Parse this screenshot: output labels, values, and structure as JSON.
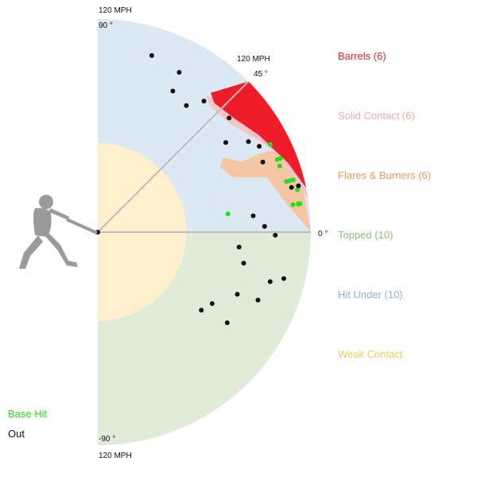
{
  "chart_data": {
    "type": "scatter",
    "axis_labels": {
      "max_speed_top": "120 MPH",
      "max_speed_mid": "120 MPH",
      "max_speed_bottom": "120 MPH",
      "angle_top": "90 °",
      "angle_45": "45 °",
      "angle_0": "0 °",
      "angle_bottom": "-90 °"
    },
    "zones": [
      {
        "name": "Barrels",
        "label": "Barrels (6)",
        "count": 6,
        "color": "#ef1d2a"
      },
      {
        "name": "Solid Contact",
        "label": "Solid Contact (6)",
        "count": 6,
        "color": "#f6a8a8"
      },
      {
        "name": "Flares & Burners",
        "label": "Flares & Burners (6)",
        "count": 6,
        "color": "#ef9a5c"
      },
      {
        "name": "Topped",
        "label": "Topped (10)",
        "count": 10,
        "color": "#8fc07a"
      },
      {
        "name": "Hit Under",
        "label": "Hit Under (10)",
        "count": 10,
        "color": "#8ab4d8"
      },
      {
        "name": "Weak Contact",
        "label": "Weak Contact",
        "color": "#f2c95c"
      }
    ],
    "zone_fill_colors": {
      "hit_under": "#dce8f3",
      "topped": "#e1ecd8",
      "weak": "#fdf0cc",
      "flares": "#f6c6a4",
      "solid": "#f9c3c8",
      "barrels": "#ef1d2a"
    },
    "outcome_legend": [
      {
        "label": "Base Hit",
        "color": "#22e01d"
      },
      {
        "label": "Out",
        "color": "#111111"
      }
    ],
    "x_axis": {
      "quantity": "exit velocity",
      "unit": "mph",
      "range": [
        0,
        120
      ]
    },
    "y_axis": {
      "quantity": "launch angle",
      "unit": "deg",
      "range": [
        -90,
        90
      ]
    },
    "series": [
      {
        "name": "Base Hit",
        "color": "#22e01d",
        "points": [
          {
            "ev": 109,
            "la": 27
          },
          {
            "ev": 109,
            "la": 22
          },
          {
            "ev": 111,
            "la": 22
          },
          {
            "ev": 109,
            "la": 20
          },
          {
            "ev": 110,
            "la": 15
          },
          {
            "ev": 112,
            "la": 15
          },
          {
            "ev": 114,
            "la": 15
          },
          {
            "ev": 115,
            "la": 12
          },
          {
            "ev": 114,
            "la": 8
          },
          {
            "ev": 111,
            "la": 8
          },
          {
            "ev": 115,
            "la": 8
          },
          {
            "ev": 74,
            "la": 8
          }
        ]
      },
      {
        "name": "Out",
        "color": "#111111",
        "points": [
          {
            "ev": 104,
            "la": 73
          },
          {
            "ev": 101,
            "la": 63
          },
          {
            "ev": 90,
            "la": 62
          },
          {
            "ev": 87,
            "la": 55
          },
          {
            "ev": 95,
            "la": 51
          },
          {
            "ev": 98,
            "la": 41
          },
          {
            "ev": 88,
            "la": 35
          },
          {
            "ev": 99,
            "la": 31
          },
          {
            "ev": 103,
            "la": 28
          },
          {
            "ev": 101,
            "la": 23
          },
          {
            "ev": 116,
            "la": 13
          },
          {
            "ev": 112,
            "la": 13
          },
          {
            "ev": 88,
            "la": 6
          },
          {
            "ev": 94,
            "la": 2
          },
          {
            "ev": 100,
            "la": -1
          },
          {
            "ev": 80,
            "la": -6
          },
          {
            "ev": 84,
            "la": -12
          },
          {
            "ev": 108,
            "la": -14
          },
          {
            "ev": 101,
            "la": -16
          },
          {
            "ev": 98,
            "la": -23
          },
          {
            "ev": 86,
            "la": -24
          },
          {
            "ev": 76,
            "la": -32
          },
          {
            "ev": 89,
            "la": -35
          },
          {
            "ev": 73,
            "la": -37
          }
        ]
      }
    ]
  }
}
